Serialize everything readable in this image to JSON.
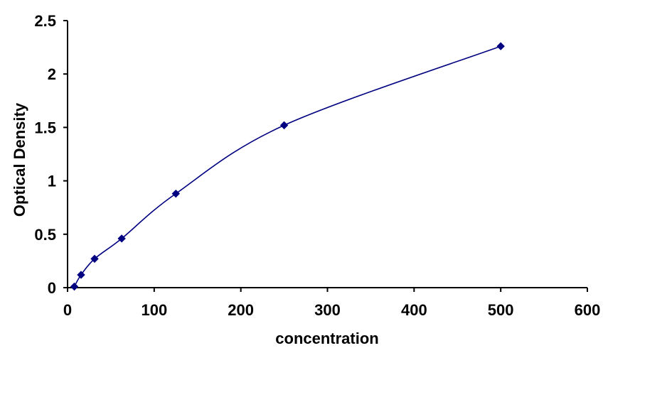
{
  "chart_data": {
    "type": "scatter",
    "title": "",
    "xlabel": "concentration",
    "ylabel": "Optical Density",
    "xlim": [
      0,
      600
    ],
    "ylim": [
      0,
      2.5
    ],
    "x_ticks": [
      "0",
      "100",
      "200",
      "300",
      "400",
      "500",
      "600"
    ],
    "y_ticks": [
      "0",
      "0.5",
      "1",
      "1.5",
      "2",
      "2.5"
    ],
    "grid": false,
    "legend": "none",
    "line": "smoothed",
    "series": [
      {
        "color": "#000080",
        "marker": "diamond",
        "x": [
          7.8,
          15.6,
          31.2,
          62.5,
          125,
          250,
          500
        ],
        "y": [
          0.01,
          0.12,
          0.27,
          0.46,
          0.88,
          1.52,
          2.26
        ]
      }
    ]
  }
}
